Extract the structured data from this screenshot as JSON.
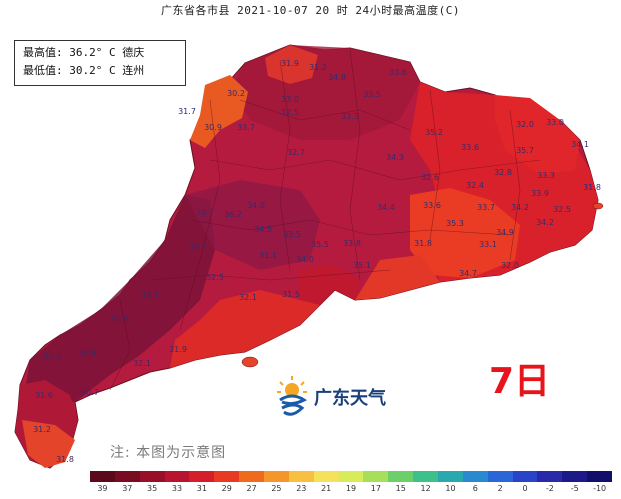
{
  "title": "广东省各市县 2021-10-07 20 时 24小时最高温度(C)",
  "stats": {
    "max_line": "最高值: 36.2° C 德庆",
    "min_line": "最低值: 30.2° C 连州"
  },
  "day_label": "7日",
  "logo_text": "广东天气",
  "note": "注: 本图为示意图",
  "legend": {
    "colors": [
      "#5a0a1a",
      "#7a0c22",
      "#980f2a",
      "#b81430",
      "#d41f2a",
      "#e83a22",
      "#f06a1e",
      "#f5962a",
      "#f8c040",
      "#f5e15a",
      "#d8ec5a",
      "#a8df5a",
      "#6cd06a",
      "#3ec08a",
      "#2aa8b0",
      "#2a8ad0",
      "#2a66d8",
      "#2a44c8",
      "#2a2aa8",
      "#1c1a88",
      "#120f6a"
    ],
    "ticks": [
      "39",
      "37",
      "35",
      "33",
      "31",
      "29",
      "27",
      "25",
      "23",
      "21",
      "19",
      "17",
      "15",
      "12",
      "10",
      "6",
      "2",
      "0",
      "-2",
      "-5",
      "-10"
    ]
  },
  "map": {
    "labels": [
      {
        "text": "31.9"
      },
      {
        "text": "31.2"
      },
      {
        "text": "30.2"
      },
      {
        "text": "30.9"
      },
      {
        "text": "31.7"
      },
      {
        "text": "34.8"
      },
      {
        "text": "33.6"
      },
      {
        "text": "33.5"
      },
      {
        "text": "33.0"
      },
      {
        "text": "33.7"
      },
      {
        "text": "32.7"
      },
      {
        "text": "32.5"
      },
      {
        "text": "33.3"
      },
      {
        "text": "35.2"
      },
      {
        "text": "34.3"
      },
      {
        "text": "33.6"
      },
      {
        "text": "32.0"
      },
      {
        "text": "33.0"
      },
      {
        "text": "34.1"
      },
      {
        "text": "35.7"
      },
      {
        "text": "32.8"
      },
      {
        "text": "33.3"
      },
      {
        "text": "32.6"
      },
      {
        "text": "32.4"
      },
      {
        "text": "33.9"
      },
      {
        "text": "32.5"
      },
      {
        "text": "34.2"
      },
      {
        "text": "31.8"
      },
      {
        "text": "33.6"
      },
      {
        "text": "34.4"
      },
      {
        "text": "34.9"
      },
      {
        "text": "35.3"
      },
      {
        "text": "36.2"
      },
      {
        "text": "33.7"
      },
      {
        "text": "34.5"
      },
      {
        "text": "33.5"
      },
      {
        "text": "35.5"
      },
      {
        "text": "31.5"
      },
      {
        "text": "31.1"
      },
      {
        "text": "34.0"
      },
      {
        "text": "34.0"
      },
      {
        "text": "32.5"
      },
      {
        "text": "32.1"
      },
      {
        "text": "31.5"
      },
      {
        "text": "35.1"
      },
      {
        "text": "33.8"
      },
      {
        "text": "31.8"
      },
      {
        "text": "33.1"
      },
      {
        "text": "34.7"
      },
      {
        "text": "32.0"
      },
      {
        "text": "34.2"
      },
      {
        "text": "33.7"
      },
      {
        "text": "34.1"
      },
      {
        "text": "32.6"
      },
      {
        "text": "31.9"
      },
      {
        "text": "32.1"
      },
      {
        "text": "31.4"
      },
      {
        "text": "30.7"
      },
      {
        "text": "31.6"
      },
      {
        "text": "33.9"
      },
      {
        "text": "31.2"
      },
      {
        "text": "31.8"
      }
    ]
  }
}
